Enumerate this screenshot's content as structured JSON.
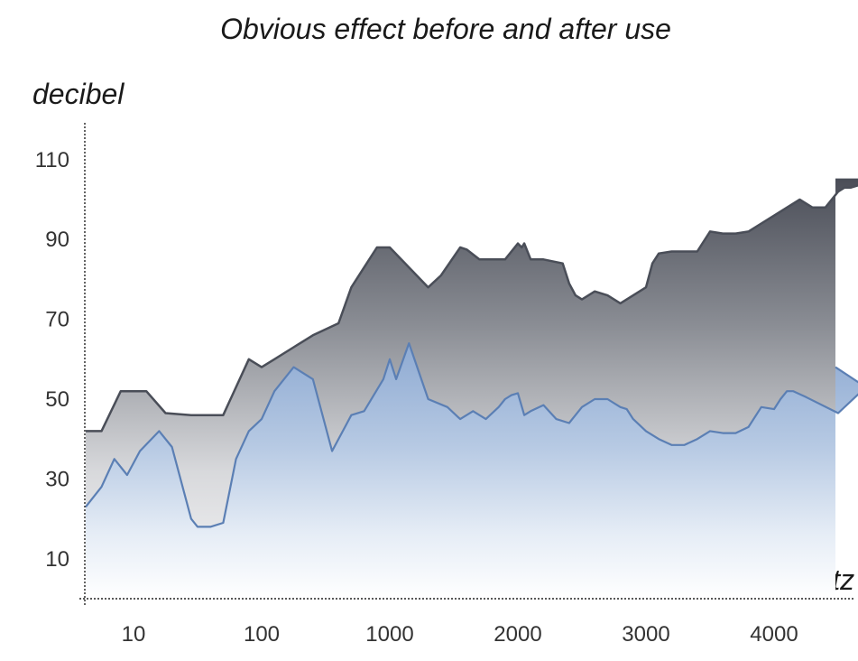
{
  "chart_data": {
    "type": "area",
    "title": "Obvious effect before and after use",
    "ylabel": "decibel",
    "xlabel": "hertz",
    "x_ticks": [
      "10",
      "100",
      "1000",
      "2000",
      "3000",
      "4000"
    ],
    "y_ticks": [
      10,
      30,
      50,
      70,
      90,
      110
    ],
    "ylim": [
      0,
      120
    ],
    "grid": false,
    "series": [
      {
        "color": "#4a4e58",
        "x": [
          -0.4,
          -0.25,
          -0.1,
          0.1,
          0.25,
          0.45,
          0.7,
          0.9,
          1.0,
          1.1,
          1.25,
          1.4,
          1.6,
          1.7,
          1.8,
          1.9,
          2.0,
          2.3,
          2.4,
          2.55,
          2.6,
          2.7,
          2.8,
          2.9,
          3.0,
          3.03,
          3.05,
          3.1,
          3.2,
          3.35,
          3.4,
          3.45,
          3.5,
          3.6,
          3.7,
          3.8,
          3.9,
          4.0,
          4.05,
          4.1,
          4.2,
          4.3,
          4.4,
          4.5,
          4.6,
          4.7,
          4.8,
          4.9,
          5.0,
          5.1,
          5.2,
          5.3,
          5.4,
          5.5,
          5.55,
          5.6,
          5.7,
          5.9,
          6.0,
          6.1,
          6.2,
          6.3,
          6.35,
          6.5
        ],
        "values": [
          42,
          42,
          52,
          52,
          46.5,
          46,
          46,
          60,
          58,
          60,
          63,
          66,
          69,
          78,
          83,
          88,
          88,
          78,
          81,
          88,
          87.5,
          85,
          85,
          85,
          89,
          88,
          89,
          85,
          85,
          84,
          79,
          76,
          75,
          77,
          76,
          74,
          76,
          78,
          84,
          86.5,
          87,
          87,
          87,
          92,
          91.5,
          91.5,
          92,
          94,
          96,
          98,
          100,
          98,
          98,
          102,
          103,
          103,
          104,
          105,
          105.5,
          105.5,
          105.5,
          105.5,
          105,
          105
        ]
      },
      {
        "color": "#5b7fb4",
        "x": [
          -0.4,
          -0.25,
          -0.15,
          -0.05,
          0.05,
          0.2,
          0.3,
          0.45,
          0.5,
          0.6,
          0.7,
          0.8,
          0.9,
          1.0,
          1.1,
          1.25,
          1.4,
          1.55,
          1.7,
          1.8,
          1.95,
          2.0,
          2.05,
          2.15,
          2.3,
          2.45,
          2.55,
          2.65,
          2.75,
          2.85,
          2.9,
          2.95,
          3.0,
          3.05,
          3.1,
          3.2,
          3.3,
          3.4,
          3.5,
          3.6,
          3.7,
          3.8,
          3.85,
          3.9,
          4.0,
          4.1,
          4.2,
          4.3,
          4.4,
          4.5,
          4.6,
          4.7,
          4.8,
          4.9,
          5.0,
          5.05,
          5.1,
          5.15,
          5.25,
          5.5,
          5.75,
          6.0,
          6.5
        ],
        "values": [
          23,
          28,
          35,
          31,
          37,
          42,
          38,
          20,
          18,
          18,
          19,
          35,
          42,
          45,
          52,
          58,
          55,
          37,
          46,
          47,
          55,
          60,
          55,
          64,
          50,
          48,
          45,
          47,
          45,
          48,
          50,
          51,
          51.5,
          46,
          47,
          48.5,
          45,
          44,
          48,
          50,
          50,
          48,
          47.5,
          45,
          42,
          40,
          38.5,
          38.5,
          40,
          42,
          41.5,
          41.5,
          43,
          48,
          47.5,
          50,
          52,
          52,
          50.5,
          46.5,
          54,
          47,
          58
        ]
      }
    ]
  }
}
